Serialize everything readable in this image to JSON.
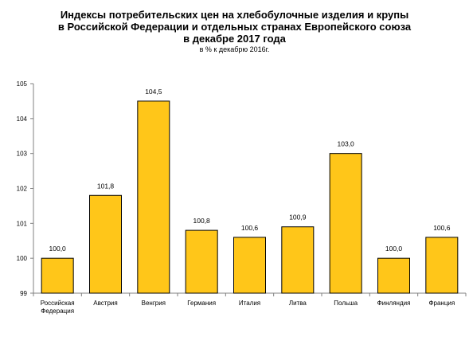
{
  "chart": {
    "title_lines": [
      "Индексы потребительских цен на хлебобулочные изделия и крупы",
      "в Российской Федерации и отдельных странах Европейского союза",
      "в декабре 2017 года"
    ],
    "subtitle": "в % к декабрю 2016г."
  },
  "chart_data": {
    "type": "bar",
    "title": "Индексы потребительских цен на хлебобулочные изделия и крупы в Российской Федерации и отдельных странах Европейского союза в декабре 2017 года",
    "subtitle": "в % к декабрю 2016г.",
    "categories": [
      [
        "Российская",
        "Федерация"
      ],
      [
        "Австрия"
      ],
      [
        "Венгрия"
      ],
      [
        "Германия"
      ],
      [
        "Италия"
      ],
      [
        "Литва"
      ],
      [
        "Польша"
      ],
      [
        "Финляндия"
      ],
      [
        "Франция"
      ]
    ],
    "values": [
      100.0,
      101.8,
      104.5,
      100.8,
      100.6,
      100.9,
      103.0,
      100.0,
      100.6
    ],
    "value_labels": [
      "100,0",
      "101,8",
      "104,5",
      "100,8",
      "100,6",
      "100,9",
      "103,0",
      "100,0",
      "100,6"
    ],
    "yticks": [
      "99",
      "100",
      "101",
      "102",
      "103",
      "104",
      "105"
    ],
    "ylim": [
      99,
      105
    ],
    "xlabel": "",
    "ylabel": "",
    "grid": false,
    "legend": "none",
    "colors": {
      "bar_fill": "#FFC619",
      "bar_stroke": "#000000",
      "axis": "#808080"
    }
  }
}
